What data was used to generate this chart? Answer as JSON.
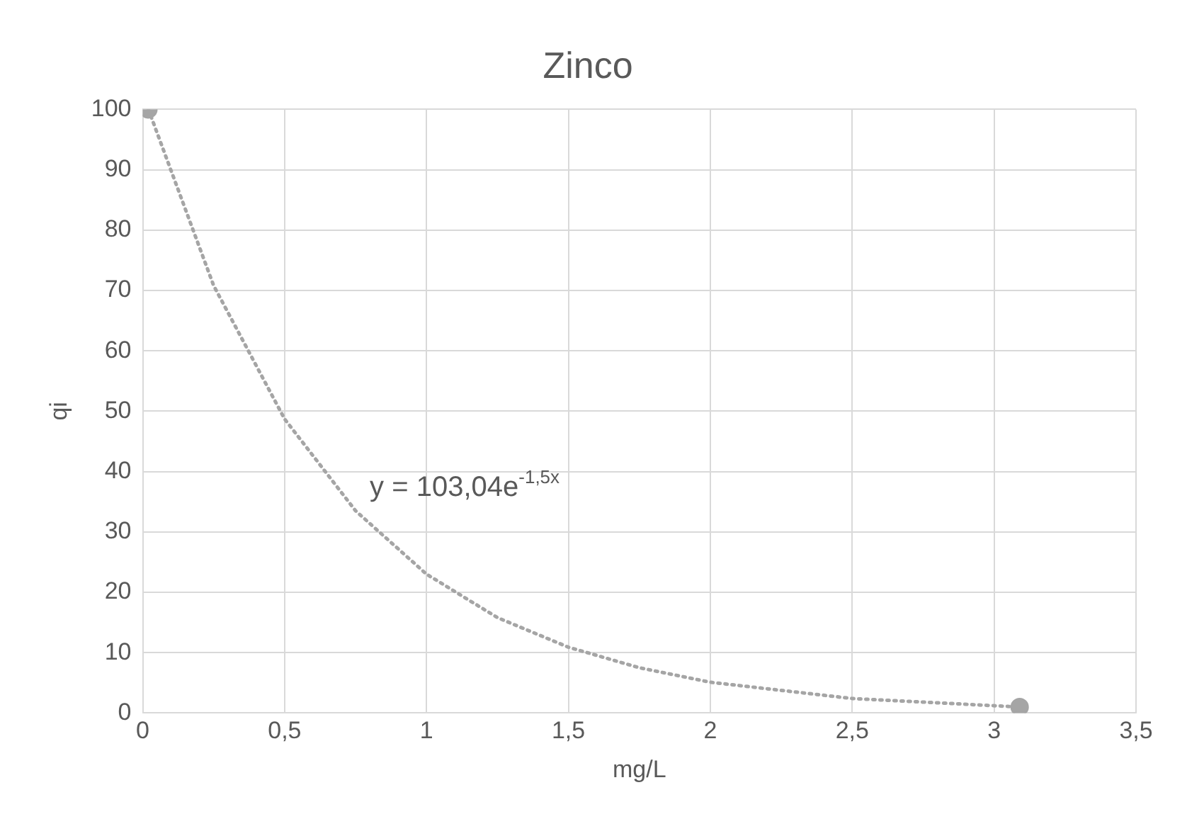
{
  "chart_data": {
    "type": "scatter",
    "title": "Zinco",
    "xlabel": "mg/L",
    "ylabel": "qi",
    "xlim": [
      0,
      3.5
    ],
    "xticks": [
      {
        "value": 0,
        "label": "0"
      },
      {
        "value": 0.5,
        "label": "0,5"
      },
      {
        "value": 1,
        "label": "1"
      },
      {
        "value": 1.5,
        "label": "1,5"
      },
      {
        "value": 2,
        "label": "2"
      },
      {
        "value": 2.5,
        "label": "2,5"
      },
      {
        "value": 3,
        "label": "3"
      },
      {
        "value": 3.5,
        "label": "3,5"
      }
    ],
    "ylim": [
      0,
      100
    ],
    "yticks": [
      0,
      10,
      20,
      30,
      40,
      50,
      60,
      70,
      80,
      90,
      100
    ],
    "grid": true,
    "marker": "circle",
    "series": [
      {
        "type": "scatter",
        "color": "#a5a5a5",
        "x": [
          0.02,
          3.09
        ],
        "values": [
          100,
          1
        ]
      },
      {
        "type": "line",
        "color": "#a5a5a5",
        "line_style": "dotted",
        "marker": "none",
        "x": [
          0.02,
          0.25,
          0.5,
          0.75,
          1,
          1.25,
          1.5,
          1.75,
          2,
          2.5,
          3.09
        ],
        "values": [
          100,
          70.8,
          48.7,
          33.5,
          23,
          15.8,
          10.9,
          7.5,
          5.1,
          2.4,
          1
        ]
      }
    ],
    "annotations": [
      "y = 103,04e$^{-1,5x}$"
    ]
  }
}
